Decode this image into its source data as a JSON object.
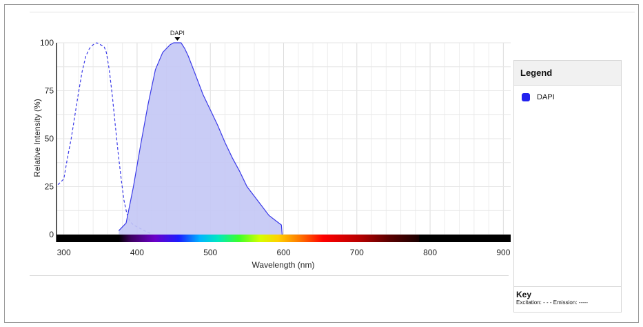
{
  "legend": {
    "title": "Legend",
    "items": [
      {
        "label": "DAPI",
        "color": "#2222ee"
      }
    ]
  },
  "key": {
    "title": "Key",
    "text": "Excitation: - - -   Emission: -----"
  },
  "chart_data": {
    "type": "area",
    "xlabel": "Wavelength (nm)",
    "ylabel": "Relative Intensity (%)",
    "xlim": [
      290,
      910
    ],
    "ylim": [
      0,
      100
    ],
    "xticks": [
      300,
      400,
      500,
      600,
      700,
      800,
      900
    ],
    "yticks": [
      0,
      25,
      50,
      75,
      100
    ],
    "grid": true,
    "legend_position": "right panel",
    "spectrum_bar": {
      "start": 375,
      "end": 785
    },
    "peak_annotation": {
      "label": "DAPI",
      "x": 455
    },
    "series": [
      {
        "name": "DAPI",
        "color": "#3a3ae8",
        "fill": "#c3c6f5",
        "kind": "excitation",
        "dash": true,
        "points": [
          [
            292,
            26
          ],
          [
            300,
            29
          ],
          [
            305,
            40
          ],
          [
            310,
            50
          ],
          [
            315,
            62
          ],
          [
            320,
            74
          ],
          [
            325,
            85
          ],
          [
            330,
            93
          ],
          [
            335,
            97
          ],
          [
            340,
            99
          ],
          [
            345,
            100
          ],
          [
            350,
            99
          ],
          [
            355,
            98
          ],
          [
            358,
            95
          ],
          [
            362,
            86
          ],
          [
            366,
            73
          ],
          [
            370,
            58
          ],
          [
            374,
            43
          ],
          [
            378,
            30
          ],
          [
            382,
            18
          ],
          [
            386,
            11
          ],
          [
            390,
            7
          ],
          [
            395,
            5
          ],
          [
            400,
            4
          ],
          [
            405,
            3
          ],
          [
            410,
            2
          ],
          [
            415,
            1
          ],
          [
            420,
            0.5
          ]
        ]
      },
      {
        "name": "DAPI",
        "color": "#3a3ae8",
        "fill": "#c3c6f5",
        "kind": "emission",
        "dash": false,
        "points": [
          [
            375,
            2
          ],
          [
            385,
            6
          ],
          [
            395,
            25
          ],
          [
            405,
            47
          ],
          [
            415,
            68
          ],
          [
            425,
            86
          ],
          [
            435,
            95
          ],
          [
            445,
            99
          ],
          [
            450,
            100
          ],
          [
            455,
            100
          ],
          [
            460,
            100
          ],
          [
            465,
            97
          ],
          [
            470,
            93
          ],
          [
            480,
            83
          ],
          [
            490,
            73
          ],
          [
            500,
            65
          ],
          [
            510,
            57
          ],
          [
            520,
            48
          ],
          [
            530,
            40
          ],
          [
            540,
            33
          ],
          [
            550,
            25
          ],
          [
            560,
            20
          ],
          [
            570,
            15
          ],
          [
            580,
            10
          ],
          [
            590,
            7
          ],
          [
            597,
            5
          ],
          [
            598,
            0
          ]
        ]
      }
    ]
  }
}
